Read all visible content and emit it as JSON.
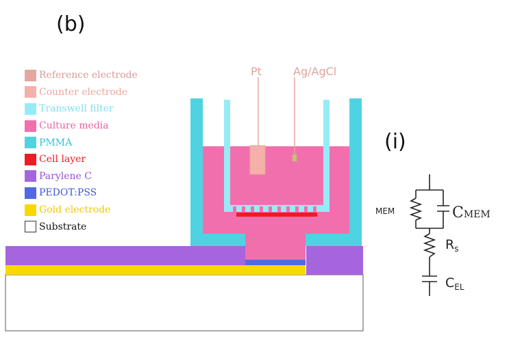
{
  "panel_b_label": "(b)",
  "panel_i_label": "(i)",
  "legend": [
    {
      "label": "Reference electrode",
      "swatch": "#e3a79f",
      "text_color": "#d69c98"
    },
    {
      "label": "Counter electrode",
      "swatch": "#f4b0a9",
      "text_color": "#eba7a0"
    },
    {
      "label": "Transwell filter",
      "swatch": "#96ecf6",
      "text_color": "#7fe0ee"
    },
    {
      "label": "Culture media",
      "swatch": "#f26fae",
      "text_color": "#ef5fa5"
    },
    {
      "label": "PMMA",
      "swatch": "#4fd3e2",
      "text_color": "#33c5d8"
    },
    {
      "label": "Cell layer",
      "swatch": "#ee1b24",
      "text_color": "#ee1b24"
    },
    {
      "label": "Parylene C",
      "swatch": "#a565dc",
      "text_color": "#9a4fd6"
    },
    {
      "label": "PEDOT:PSS",
      "swatch": "#4f6ae4",
      "text_color": "#3f57d8"
    },
    {
      "label": "Gold electrode",
      "swatch": "#f9d800",
      "text_color": "#f0c800"
    },
    {
      "label": "Substrate",
      "swatch": "#ffffff",
      "text_color": "#111111"
    }
  ],
  "electrodes": {
    "pt_label": "Pt",
    "agcl_label": "Ag/AgCl"
  },
  "circuit": {
    "r_mem": "MEM",
    "c_mem_main": "C",
    "c_mem_sub": "MEM",
    "rs_main": "R",
    "rs_sub": "s",
    "cel_main": "C",
    "cel_sub": "EL"
  }
}
